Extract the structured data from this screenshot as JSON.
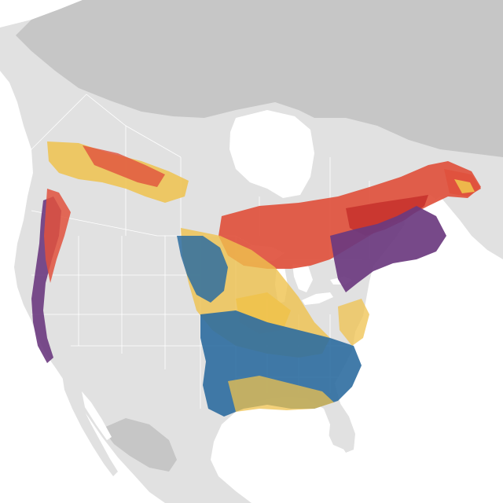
{
  "map": {
    "projection": "north-america-albers",
    "labels": [],
    "colors": {
      "ocean": "#ffffff",
      "land_in_context": "#e1e1e1",
      "land_far_north": "#c6c6c6",
      "boundary_lines": "#ffffff",
      "breeding": "#e0513d",
      "breeding_dark": "#c8332d",
      "year_round": "#6b3a7f",
      "migration": "#efc24d",
      "nonbreeding": "#2e6da0"
    },
    "seasons": [
      "breeding",
      "year_round",
      "migration",
      "nonbreeding"
    ]
  }
}
